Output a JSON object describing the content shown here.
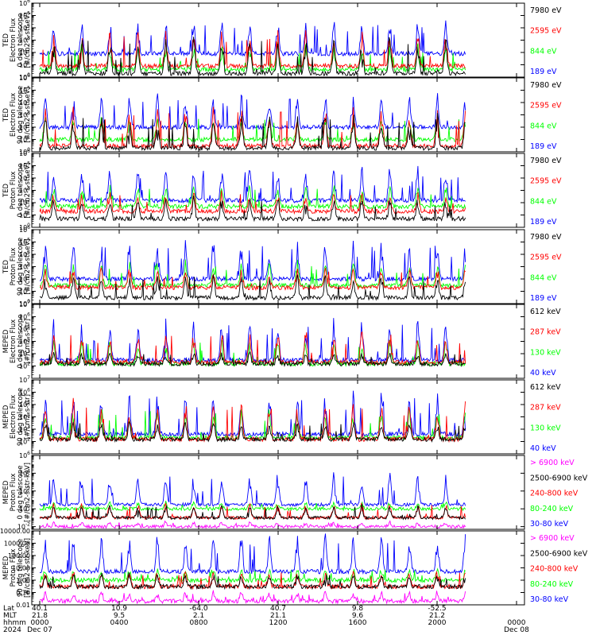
{
  "colors": {
    "blue": "#0000ff",
    "red": "#ff0000",
    "green": "#00ff00",
    "black": "#000000",
    "magenta": "#ff00ff"
  },
  "chart_data": [
    {
      "type": "line",
      "ylabel": [
        "TED",
        "Electron Flux",
        "0 deg telescope",
        "[#/cm2-s-str-eV]"
      ],
      "log": true,
      "ylim": [
        1,
        1000000
      ],
      "yticks": [
        {
          "v": 1,
          "t": "10^0"
        },
        {
          "v": 10,
          "t": "10^1"
        },
        {
          "v": 100,
          "t": "10^2"
        },
        {
          "v": 1000,
          "t": "10^3"
        },
        {
          "v": 10000,
          "t": "10^4"
        },
        {
          "v": 100000,
          "t": "10^5"
        },
        {
          "v": 1000000,
          "t": "10^6"
        }
      ],
      "series": [
        {
          "name": "7980 eV",
          "color": "black",
          "base": 2,
          "peak": 1000
        },
        {
          "name": "2595 eV",
          "color": "red",
          "base": 8,
          "peak": 3000
        },
        {
          "name": "844 eV",
          "color": "green",
          "base": 4,
          "peak": 300
        },
        {
          "name": "189 eV",
          "color": "blue",
          "base": 80,
          "peak": 20000
        }
      ]
    },
    {
      "type": "line",
      "ylabel": [
        "TED",
        "Electron Flux",
        "90 deg telescope",
        "[#/cm2-s-str-eV]"
      ],
      "log": true,
      "ylim": [
        1,
        1000000
      ],
      "yticks": [
        {
          "v": 1,
          "t": "10^0"
        },
        {
          "v": 10,
          "t": "10^1"
        },
        {
          "v": 100,
          "t": "10^2"
        },
        {
          "v": 1000,
          "t": "10^3"
        },
        {
          "v": 10000,
          "t": "10^4"
        },
        {
          "v": 100000,
          "t": "10^5"
        },
        {
          "v": 1000000,
          "t": "10^6"
        }
      ],
      "series": [
        {
          "name": "7980 eV",
          "color": "black",
          "base": 2,
          "peak": 800
        },
        {
          "name": "2595 eV",
          "color": "red",
          "base": 3,
          "peak": 3000
        },
        {
          "name": "844 eV",
          "color": "green",
          "base": 10,
          "peak": 500
        },
        {
          "name": "189 eV",
          "color": "blue",
          "base": 100,
          "peak": 30000
        }
      ]
    },
    {
      "type": "line",
      "ylabel": [
        "TED",
        "Proton Flux",
        "0 deg telescope",
        "[#/cm2-s-str-eV]"
      ],
      "log": true,
      "ylim": [
        1,
        1000000
      ],
      "yticks": [
        {
          "v": 1,
          "t": "10^0"
        },
        {
          "v": 10,
          "t": "10^1"
        },
        {
          "v": 100,
          "t": "10^2"
        },
        {
          "v": 1000,
          "t": "10^3"
        },
        {
          "v": 10000,
          "t": "10^4"
        },
        {
          "v": 100000,
          "t": "10^5"
        },
        {
          "v": 1000000,
          "t": "10^6"
        }
      ],
      "series": [
        {
          "name": "7980 eV",
          "color": "black",
          "base": 5,
          "peak": 200
        },
        {
          "name": "2595 eV",
          "color": "red",
          "base": 20,
          "peak": 500
        },
        {
          "name": "844 eV",
          "color": "green",
          "base": 50,
          "peak": 2000
        },
        {
          "name": "189 eV",
          "color": "blue",
          "base": 150,
          "peak": 50000
        }
      ]
    },
    {
      "type": "line",
      "ylabel": [
        "TED",
        "Proton Flux",
        "90 deg telescope",
        "[#/cm2-s-str-eV]"
      ],
      "log": true,
      "ylim": [
        1,
        1000000
      ],
      "yticks": [
        {
          "v": 1,
          "t": "10^0"
        },
        {
          "v": 10,
          "t": "10^1"
        },
        {
          "v": 100,
          "t": "10^2"
        },
        {
          "v": 1000,
          "t": "10^3"
        },
        {
          "v": 10000,
          "t": "10^4"
        },
        {
          "v": 100000,
          "t": "10^5"
        },
        {
          "v": 1000000,
          "t": "10^6"
        }
      ],
      "series": [
        {
          "name": "7980 eV",
          "color": "black",
          "base": 3,
          "peak": 150
        },
        {
          "name": "2595 eV",
          "color": "red",
          "base": 20,
          "peak": 600
        },
        {
          "name": "844 eV",
          "color": "green",
          "base": 30,
          "peak": 2000
        },
        {
          "name": "189 eV",
          "color": "blue",
          "base": 100,
          "peak": 60000
        }
      ]
    },
    {
      "type": "line",
      "ylabel": [
        "MEPED",
        "Electron Flux",
        "0 deg telescope",
        "[#/cm2-s-str]"
      ],
      "log": true,
      "ylim": [
        10,
        10000000
      ],
      "yticks": [
        {
          "v": 100,
          "t": "10^2"
        },
        {
          "v": 1000,
          "t": "10^3"
        },
        {
          "v": 10000,
          "t": "10^4"
        },
        {
          "v": 100000,
          "t": "10^5"
        },
        {
          "v": 1000000,
          "t": "10^6"
        },
        {
          "v": 10000000,
          "t": "10^7"
        }
      ],
      "series": [
        {
          "name": "612 keV",
          "color": "black",
          "base": 150,
          "peak": 1000
        },
        {
          "name": "287 keV",
          "color": "red",
          "base": 200,
          "peak": 50000
        },
        {
          "name": "130 keV",
          "color": "green",
          "base": 150,
          "peak": 10000
        },
        {
          "name": "40 keV",
          "color": "blue",
          "base": 300,
          "peak": 300000
        }
      ]
    },
    {
      "type": "line",
      "ylabel": [
        "MEPED",
        "Electron Flux",
        "90 deg telescope",
        "[#/cm2-s-str]"
      ],
      "log": true,
      "ylim": [
        10,
        10000000
      ],
      "yticks": [
        {
          "v": 100,
          "t": "10^2"
        },
        {
          "v": 1000,
          "t": "10^3"
        },
        {
          "v": 10000,
          "t": "10^4"
        },
        {
          "v": 100000,
          "t": "10^5"
        },
        {
          "v": 1000000,
          "t": "10^6"
        },
        {
          "v": 10000000,
          "t": "10^7"
        }
      ],
      "series": [
        {
          "name": "612 keV",
          "color": "black",
          "base": 150,
          "peak": 3000
        },
        {
          "name": "287 keV",
          "color": "red",
          "base": 150,
          "peak": 100000
        },
        {
          "name": "130 keV",
          "color": "green",
          "base": 200,
          "peak": 30000
        },
        {
          "name": "40 keV",
          "color": "blue",
          "base": 400,
          "peak": 500000
        }
      ]
    },
    {
      "type": "line",
      "ylabel": [
        "MEPED",
        "Proton Flux",
        "0 deg telescope",
        "[#/cm2-s-str-keV]"
      ],
      "log": true,
      "ylim": [
        0.005,
        1000000
      ],
      "yticks": [
        {
          "v": 0.01,
          "t": "10^-2"
        },
        {
          "v": 1,
          "t": "10^0"
        },
        {
          "v": 100,
          "t": "10^2"
        },
        {
          "v": 10000,
          "t": "10^4"
        },
        {
          "v": 1000000,
          "t": "10^6"
        }
      ],
      "series": [
        {
          "name": "> 6900 keV",
          "color": "magenta",
          "base": 0.01,
          "peak": 0.03
        },
        {
          "name": "2500-6900 keV",
          "color": "black",
          "base": 0.1,
          "peak": 2
        },
        {
          "name": "240-800 keV",
          "color": "red",
          "base": 0.1,
          "peak": 3
        },
        {
          "name": "80-240 keV",
          "color": "green",
          "base": 1,
          "peak": 5
        },
        {
          "name": "30-80 keV",
          "color": "blue",
          "base": 3,
          "peak": 5000
        }
      ]
    },
    {
      "type": "line",
      "ylabel": [
        "MEPED",
        "Proton Flux",
        "90 deg telescope",
        "[#/cm2-s-str-keV]"
      ],
      "log": true,
      "ylim": [
        0.01,
        10000
      ],
      "yticks": [
        {
          "v": 0.01,
          "t": "0.01"
        },
        {
          "v": 0.1,
          "t": "0.10"
        },
        {
          "v": 1,
          "t": "1.00"
        },
        {
          "v": 10,
          "t": "10.00"
        },
        {
          "v": 100,
          "t": "100.00"
        },
        {
          "v": 1000,
          "t": "1000.00"
        },
        {
          "v": 10000,
          "t": "10000.00"
        }
      ],
      "series": [
        {
          "name": "> 6900 keV",
          "color": "magenta",
          "base": 0.02,
          "peak": 0.1
        },
        {
          "name": "2500-6900 keV",
          "color": "black",
          "base": 0.3,
          "peak": 3
        },
        {
          "name": "240-800 keV",
          "color": "red",
          "base": 0.3,
          "peak": 5
        },
        {
          "name": "80-240 keV",
          "color": "green",
          "base": 1,
          "peak": 8
        },
        {
          "name": "30-80 keV",
          "color": "blue",
          "base": 5,
          "peak": 3000
        }
      ]
    }
  ],
  "x_axis": {
    "row_labels": [
      "Lat",
      "MLT",
      "hhmm",
      "2024"
    ],
    "ticks": [
      {
        "lat": "40.1",
        "mlt": "21.8",
        "hhmm": "0000",
        "date": "Dec 07"
      },
      {
        "lat": "10.9",
        "mlt": "9.5",
        "hhmm": "0400",
        "date": ""
      },
      {
        "lat": "-64.0",
        "mlt": "2.1",
        "hhmm": "0800",
        "date": ""
      },
      {
        "lat": "40.7",
        "mlt": "21.1",
        "hhmm": "1200",
        "date": ""
      },
      {
        "lat": "9.8",
        "mlt": "9.6",
        "hhmm": "1600",
        "date": ""
      },
      {
        "lat": "-52.5",
        "mlt": "21.2",
        "hhmm": "2000",
        "date": ""
      },
      {
        "lat": "",
        "mlt": "",
        "hhmm": "0000",
        "date": "Dec 08"
      }
    ]
  }
}
